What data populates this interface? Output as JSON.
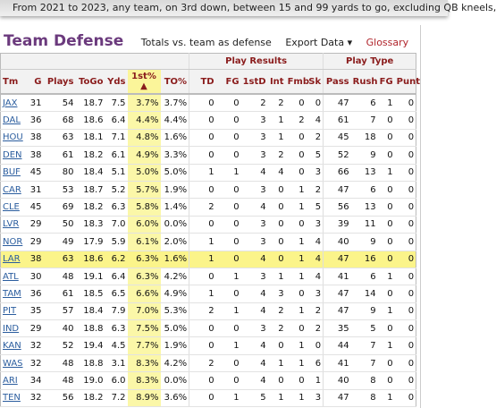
{
  "banner": "From 2021 to 2023, any team, on 3rd down, between 15 and 99 yards to go, excluding QB kneels,",
  "header": {
    "title": "Team Defense",
    "subtitle": "Totals vs. team as defense",
    "export": "Export Data ▾",
    "glossary": "Glossary"
  },
  "table": {
    "groups": [
      "Play Results",
      "Play Type"
    ],
    "columns": [
      "Tm",
      "G",
      "Plays",
      "ToGo",
      "Yds",
      "1st%",
      "TO%",
      "TD",
      "FG",
      "1stD",
      "Int",
      "Fmb",
      "Sk",
      "Pass",
      "Rush",
      "FG",
      "Punt"
    ],
    "sort_arrow": "▲",
    "rows": [
      [
        "JAX",
        "31",
        "54",
        "18.7",
        "7.5",
        "3.7%",
        "3.7%",
        "0",
        "0",
        "2",
        "2",
        "0",
        "0",
        "47",
        "6",
        "1",
        "0"
      ],
      [
        "DAL",
        "36",
        "68",
        "18.6",
        "6.4",
        "4.4%",
        "4.4%",
        "0",
        "0",
        "3",
        "1",
        "2",
        "4",
        "61",
        "7",
        "0",
        "0"
      ],
      [
        "HOU",
        "38",
        "63",
        "18.1",
        "7.1",
        "4.8%",
        "1.6%",
        "0",
        "0",
        "3",
        "1",
        "0",
        "2",
        "45",
        "18",
        "0",
        "0"
      ],
      [
        "DEN",
        "38",
        "61",
        "18.2",
        "6.1",
        "4.9%",
        "3.3%",
        "0",
        "0",
        "3",
        "2",
        "0",
        "5",
        "52",
        "9",
        "0",
        "0"
      ],
      [
        "BUF",
        "45",
        "80",
        "18.4",
        "5.1",
        "5.0%",
        "5.0%",
        "1",
        "1",
        "4",
        "4",
        "0",
        "3",
        "66",
        "13",
        "1",
        "0"
      ],
      [
        "CAR",
        "31",
        "53",
        "18.7",
        "5.2",
        "5.7%",
        "1.9%",
        "0",
        "0",
        "3",
        "0",
        "1",
        "2",
        "47",
        "6",
        "0",
        "0"
      ],
      [
        "CLE",
        "45",
        "69",
        "18.2",
        "6.3",
        "5.8%",
        "1.4%",
        "2",
        "0",
        "4",
        "0",
        "1",
        "5",
        "56",
        "13",
        "0",
        "0"
      ],
      [
        "LVR",
        "29",
        "50",
        "18.3",
        "7.0",
        "6.0%",
        "0.0%",
        "0",
        "0",
        "3",
        "0",
        "0",
        "3",
        "39",
        "11",
        "0",
        "0"
      ],
      [
        "NOR",
        "29",
        "49",
        "17.9",
        "5.9",
        "6.1%",
        "2.0%",
        "1",
        "0",
        "3",
        "0",
        "1",
        "4",
        "40",
        "9",
        "0",
        "0"
      ],
      [
        "LAR",
        "38",
        "63",
        "18.6",
        "6.2",
        "6.3%",
        "1.6%",
        "1",
        "0",
        "4",
        "0",
        "1",
        "4",
        "47",
        "16",
        "0",
        "0"
      ],
      [
        "ATL",
        "30",
        "48",
        "19.1",
        "6.4",
        "6.3%",
        "4.2%",
        "0",
        "1",
        "3",
        "1",
        "1",
        "4",
        "41",
        "6",
        "1",
        "0"
      ],
      [
        "TAM",
        "36",
        "61",
        "18.5",
        "6.5",
        "6.6%",
        "4.9%",
        "1",
        "0",
        "4",
        "3",
        "0",
        "3",
        "47",
        "14",
        "0",
        "0"
      ],
      [
        "PIT",
        "35",
        "57",
        "18.4",
        "7.9",
        "7.0%",
        "5.3%",
        "2",
        "1",
        "4",
        "2",
        "1",
        "2",
        "47",
        "9",
        "1",
        "0"
      ],
      [
        "IND",
        "29",
        "40",
        "18.8",
        "6.3",
        "7.5%",
        "5.0%",
        "0",
        "0",
        "3",
        "2",
        "0",
        "2",
        "35",
        "5",
        "0",
        "0"
      ],
      [
        "KAN",
        "32",
        "52",
        "19.4",
        "4.5",
        "7.7%",
        "1.9%",
        "0",
        "1",
        "4",
        "0",
        "1",
        "0",
        "44",
        "7",
        "1",
        "0"
      ],
      [
        "WAS",
        "32",
        "48",
        "18.8",
        "3.1",
        "8.3%",
        "4.2%",
        "2",
        "0",
        "4",
        "1",
        "1",
        "6",
        "41",
        "7",
        "0",
        "0"
      ],
      [
        "ARI",
        "34",
        "48",
        "19.0",
        "6.0",
        "8.3%",
        "0.0%",
        "0",
        "0",
        "4",
        "0",
        "0",
        "1",
        "40",
        "8",
        "0",
        "0"
      ],
      [
        "TEN",
        "32",
        "56",
        "18.2",
        "7.2",
        "8.9%",
        "3.6%",
        "0",
        "1",
        "5",
        "1",
        "1",
        "3",
        "47",
        "8",
        "1",
        "0"
      ]
    ],
    "selected_row": 9,
    "sorted_column": 5
  }
}
